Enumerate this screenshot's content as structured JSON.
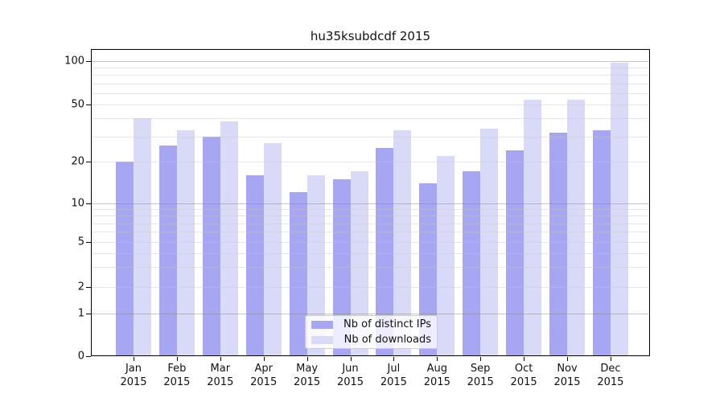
{
  "chart_data": {
    "type": "bar",
    "title": "hu35ksubdcdf 2015",
    "categories": [
      "Jan",
      "Feb",
      "Mar",
      "Apr",
      "May",
      "Jun",
      "Jul",
      "Aug",
      "Sep",
      "Oct",
      "Nov",
      "Dec"
    ],
    "category_year": "2015",
    "series": [
      {
        "name": "Nb of distinct IPs",
        "color": "#a6a6f2",
        "values": [
          20,
          26,
          30,
          16,
          12,
          15,
          25,
          14,
          17,
          24,
          32,
          33
        ]
      },
      {
        "name": "Nb of downloads",
        "color": "#d9d9f8",
        "values": [
          40,
          33,
          38,
          27,
          16,
          17,
          33,
          22,
          34,
          54,
          54,
          97
        ]
      }
    ],
    "y_axis": {
      "scale": "symlog",
      "tick_values": [
        0,
        1,
        2,
        5,
        10,
        20,
        50,
        100
      ],
      "major_gridline_values": [
        1,
        10,
        100
      ],
      "minor_gridline_values": [
        2,
        3,
        4,
        5,
        6,
        7,
        8,
        9,
        20,
        30,
        40,
        50,
        60,
        70,
        80,
        90
      ]
    },
    "grid": true,
    "legend_position": "lower center"
  },
  "colors": {
    "bar_distinct_ips": "#a6a6f2",
    "bar_downloads": "#d9d9f8",
    "axis": "#000000",
    "text": "#111111",
    "legend_border": "#cccccc"
  }
}
